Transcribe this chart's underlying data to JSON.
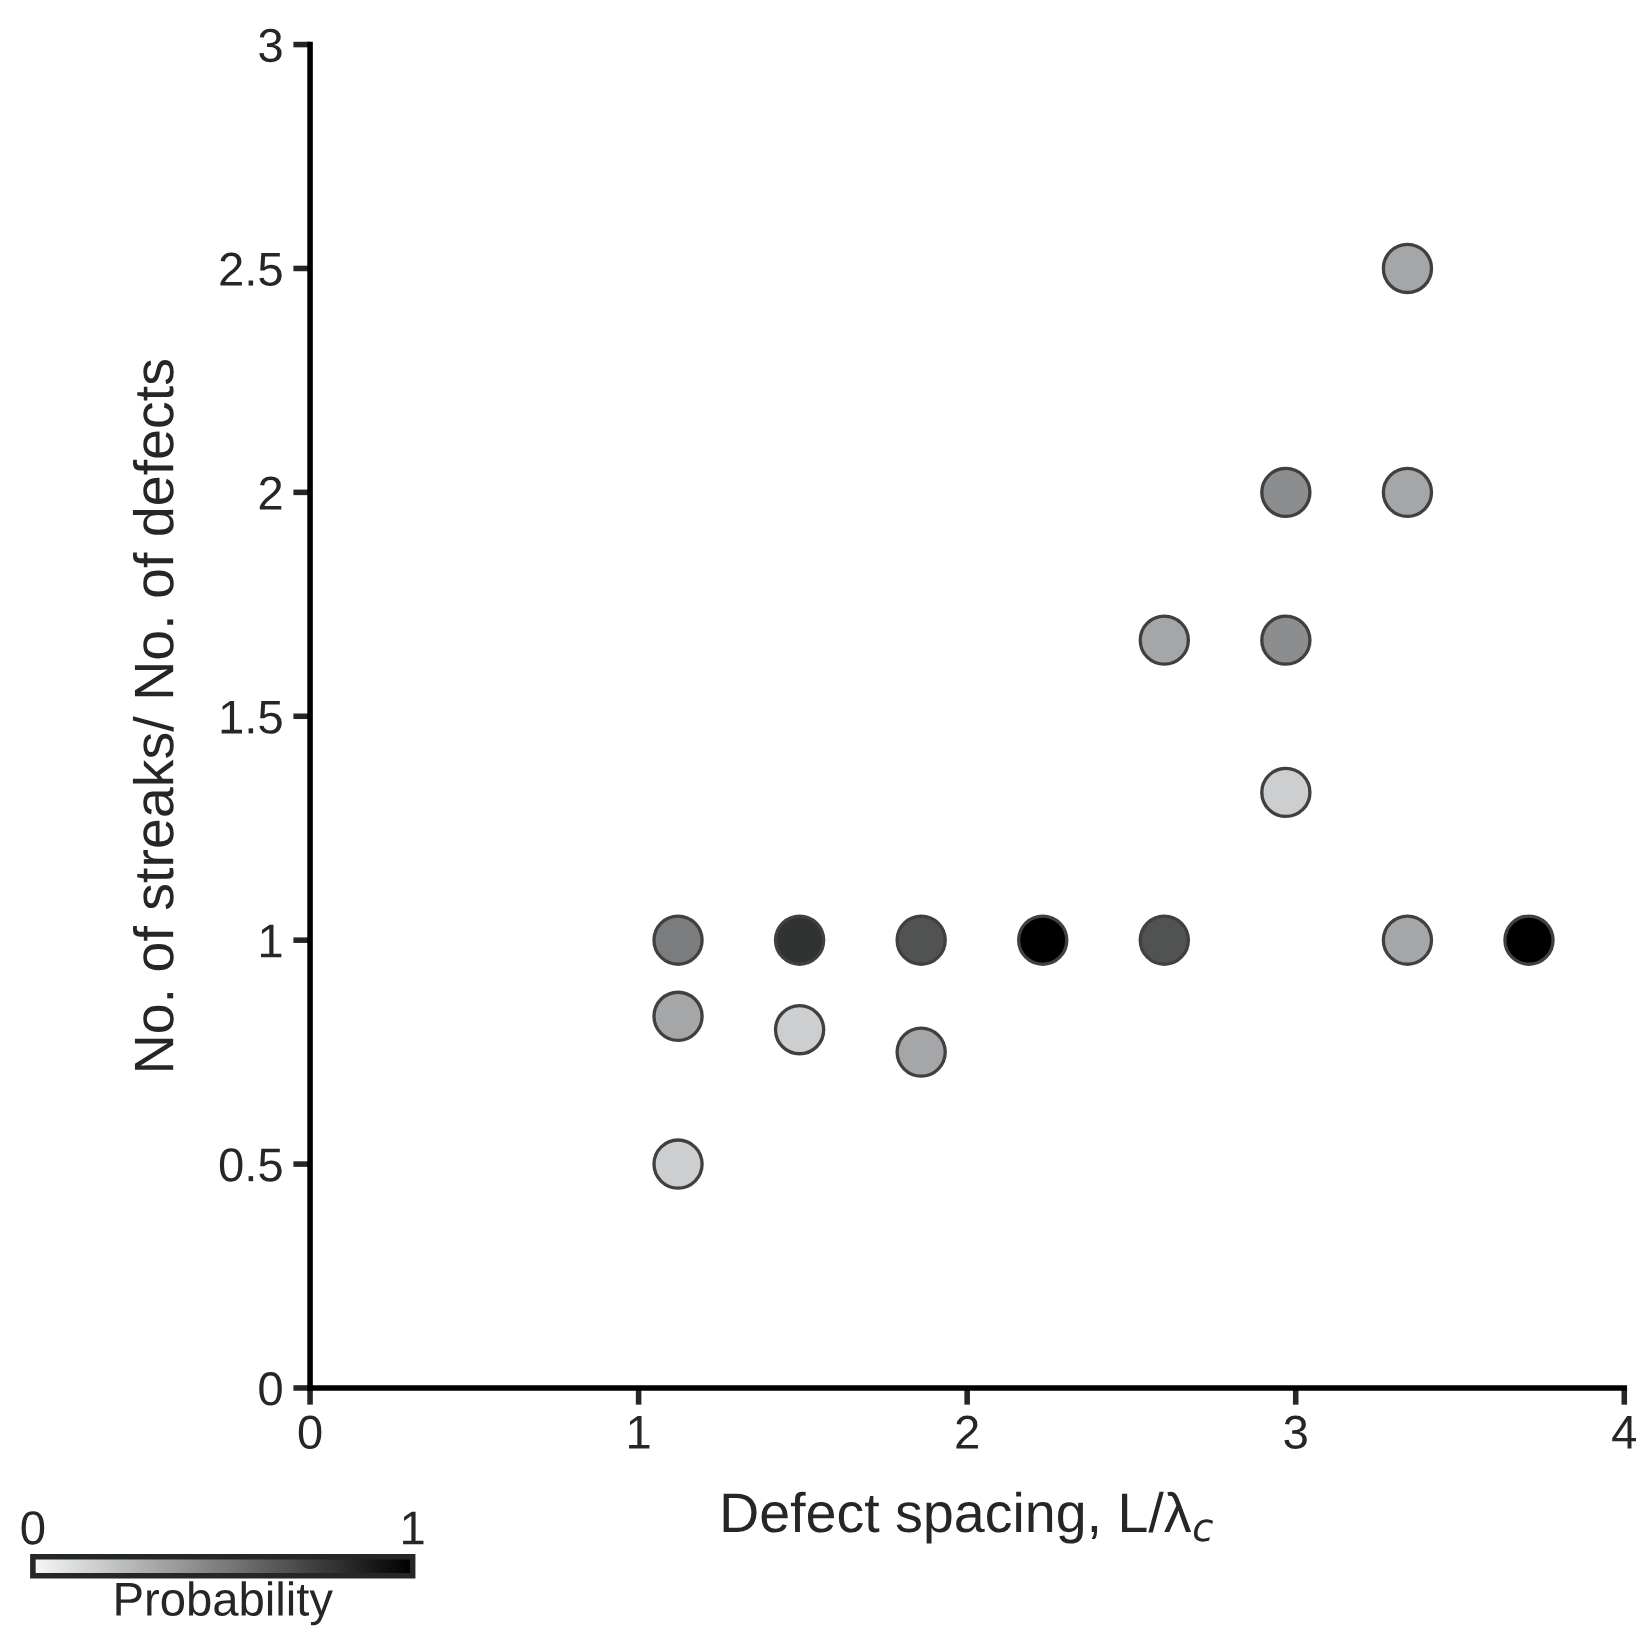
{
  "chart_data": {
    "type": "scatter",
    "xlabel": "Defect spacing, L/λ$_{c}$",
    "ylabel": "No. of streaks/ No. of defects",
    "clabel": "Probability",
    "x": [
      1.12,
      1.12,
      1.12,
      1.49,
      1.49,
      1.86,
      1.86,
      2.23,
      2.6,
      2.6,
      2.97,
      2.97,
      2.97,
      3.34,
      3.34,
      3.34,
      3.71
    ],
    "series": [
      {
        "values": [
          1,
          0.83,
          0.5,
          1,
          0.8,
          1,
          0.75,
          1,
          1,
          1.67,
          2,
          1.67,
          1.33,
          2.5,
          2,
          1,
          1
        ],
        "cvalues": [
          0.5,
          0.33,
          0.17,
          0.8,
          0.17,
          0.67,
          0.33,
          1,
          0.67,
          0.33,
          0.43,
          0.43,
          0.17,
          0.33,
          0.33,
          0.33,
          1
        ]
      }
    ],
    "colors": [
      "#f5f8fa",
      "#000000"
    ],
    "clim": [
      0,
      1
    ],
    "cticks": [
      0,
      1
    ],
    "xlim": [
      0,
      4
    ],
    "xticks": [
      0,
      1,
      2,
      3,
      4
    ],
    "ylim": [
      0,
      3
    ],
    "yticks": [
      0,
      0.5,
      1,
      1.5,
      2,
      2.5,
      3
    ],
    "marker": "circle",
    "grid": false,
    "legend": false
  }
}
